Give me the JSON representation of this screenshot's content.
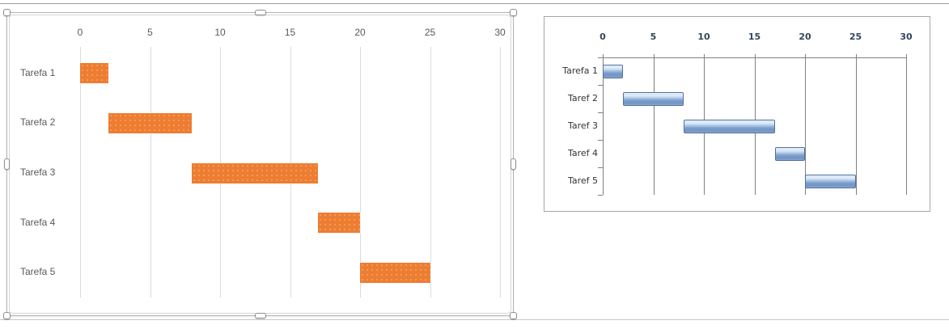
{
  "page": {
    "background": "#ffffff",
    "top_rule_color": "#9a9a9a",
    "bottom_rule_color": "#c6c6c6"
  },
  "chart_data": [
    {
      "name": "selected-orange-gantt",
      "type": "bar",
      "orientation": "horizontal",
      "title": "",
      "categories": [
        "Tarefa 1",
        "Tarefa 2",
        "Tarefa 3",
        "Tarefa 4",
        "Tarefa 5"
      ],
      "series": [
        {
          "name": "start-offset",
          "values": [
            0,
            2,
            8,
            17,
            20
          ]
        },
        {
          "name": "duration",
          "values": [
            2,
            6,
            9,
            3,
            5
          ]
        }
      ],
      "x_ticks": [
        "0",
        "5",
        "10",
        "15",
        "20",
        "25",
        "30"
      ],
      "xlim": [
        0,
        30
      ],
      "axis_labels_position": "top",
      "grid": "vertical",
      "legend": "none",
      "state": "selected",
      "colors": {
        "bar": "#ED7D31",
        "gridline": "#DBDBDB",
        "label": "#595959",
        "frame": "#B3B3B3"
      }
    },
    {
      "name": "glossy-blue-gantt",
      "type": "bar",
      "orientation": "horizontal",
      "title": "",
      "categories": [
        "Tarefa 1",
        "Taref 2",
        "Taref 3",
        "Taref 4",
        "Taref 5"
      ],
      "series": [
        {
          "name": "start-offset",
          "values": [
            0,
            2,
            8,
            17,
            20
          ]
        },
        {
          "name": "duration",
          "values": [
            2,
            6,
            9,
            3,
            5
          ]
        }
      ],
      "x_ticks": [
        "0",
        "5",
        "10",
        "15",
        "20",
        "25",
        "30"
      ],
      "xlim": [
        0,
        30
      ],
      "axis_labels_position": "top",
      "grid": "vertical",
      "legend": "none",
      "state": "normal",
      "colors": {
        "bar": "#95B3D7",
        "bar_border": "#50719E",
        "axis": "#808080",
        "tick_label": "#33455C",
        "category_label": "#333333",
        "chart_border": "#A6A6A6"
      }
    }
  ]
}
